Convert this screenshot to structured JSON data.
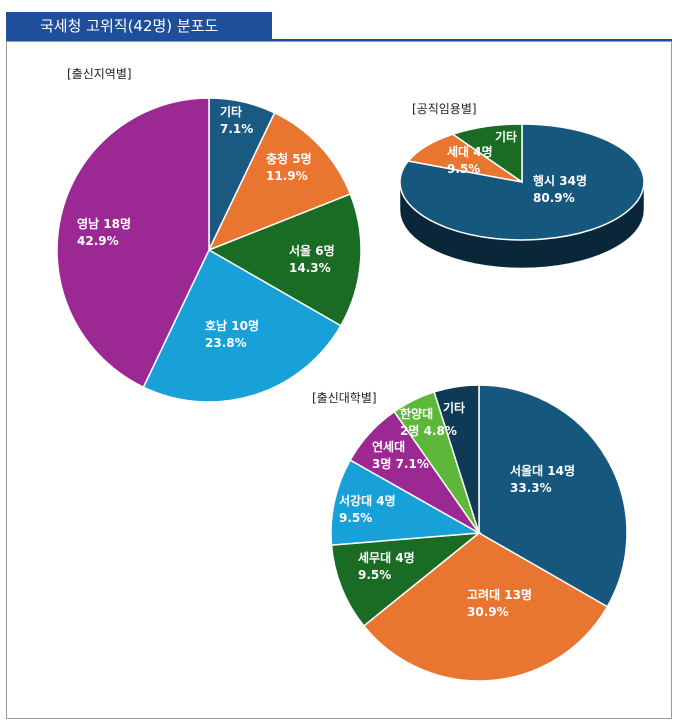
{
  "header": {
    "title": "국세청 고위직(42명) 분포도"
  },
  "chart_data": [
    {
      "type": "pie",
      "title": "[출신지역별]",
      "slices": [
        {
          "label": "기타",
          "value_label": "7.1%",
          "value": 7.1,
          "color": "#1a5a82"
        },
        {
          "label": "충청 5명",
          "value_label": "11.9%",
          "value": 11.9,
          "color": "#e87530"
        },
        {
          "label": "서울 6명",
          "value_label": "14.3%",
          "value": 14.3,
          "color": "#1a6b24"
        },
        {
          "label": "호남 10명",
          "value_label": "23.8%",
          "value": 23.8,
          "color": "#18a0d8"
        },
        {
          "label": "영남 18명",
          "value_label": "42.9%",
          "value": 42.9,
          "color": "#9c2894"
        }
      ]
    },
    {
      "type": "pie",
      "title": "[공직임용별]",
      "slices": [
        {
          "label": "행시 34명",
          "value_label": "80.9%",
          "value": 80.9,
          "color": "#16577e"
        },
        {
          "label": "세대 4명",
          "value_label": "9.5%",
          "value": 9.5,
          "color": "#e87530"
        },
        {
          "label": "기타",
          "value_label": "",
          "value": 9.6,
          "color": "#1a6b24"
        }
      ]
    },
    {
      "type": "pie",
      "title": "[출신대학별]",
      "slices": [
        {
          "label": "서울대 14명",
          "value_label": "33.3%",
          "value": 33.3,
          "color": "#16577e"
        },
        {
          "label": "고려대 13명",
          "value_label": "30.9%",
          "value": 30.9,
          "color": "#e87530"
        },
        {
          "label": "세무대 4명",
          "value_label": "9.5%",
          "value": 9.5,
          "color": "#1a6b24"
        },
        {
          "label": "서강대 4명",
          "value_label": "9.5%",
          "value": 9.5,
          "color": "#18a0d8"
        },
        {
          "label": "연세대",
          "value_label": "3명 7.1%",
          "value": 7.1,
          "color": "#9c2894"
        },
        {
          "label": "한양대",
          "value_label": "2명 4.8%",
          "value": 4.8,
          "color": "#5db83a"
        },
        {
          "label": "기타",
          "value_label": "",
          "value": 4.9,
          "color": "#0e3a55"
        }
      ]
    }
  ]
}
